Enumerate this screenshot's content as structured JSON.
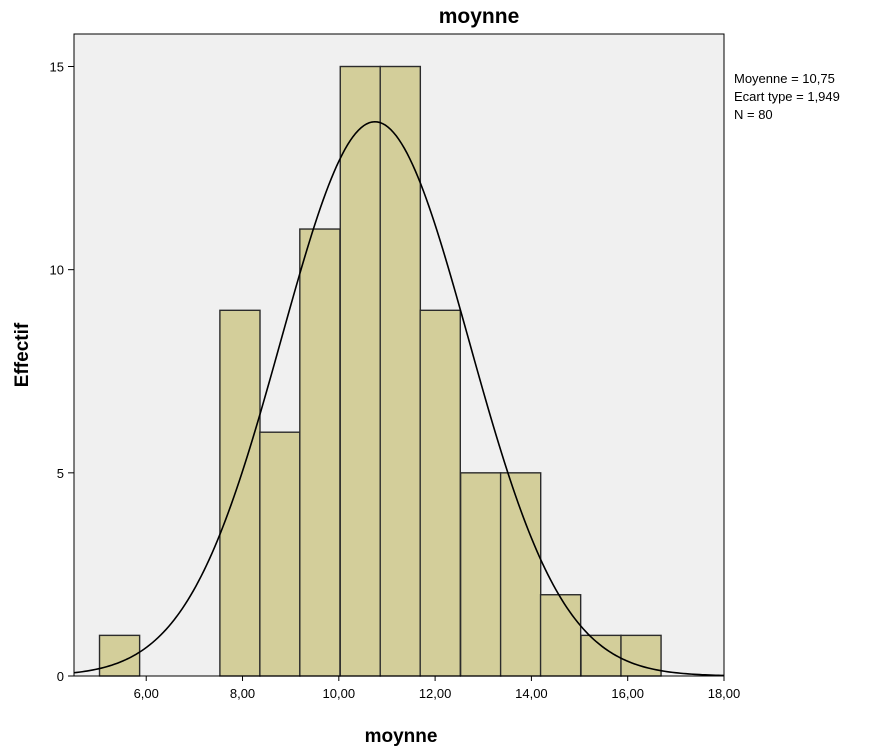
{
  "chart_data": {
    "type": "bar",
    "title": "moynne",
    "xlabel": "moynne",
    "ylabel": "Effectif",
    "xlim": [
      4.5,
      18.0
    ],
    "ylim": [
      0,
      15.8
    ],
    "x_ticks": [
      6,
      8,
      10,
      12,
      14,
      16,
      18
    ],
    "x_tick_labels": [
      "6,00",
      "8,00",
      "10,00",
      "12,00",
      "14,00",
      "16,00",
      "18,00"
    ],
    "y_ticks": [
      0,
      5,
      10,
      15
    ],
    "y_tick_labels": [
      "0",
      "5",
      "10",
      "15"
    ],
    "bin_width": 0.833,
    "bins": [
      {
        "start": 5.03,
        "count": 1
      },
      {
        "start": 7.53,
        "count": 9
      },
      {
        "start": 8.36,
        "count": 6
      },
      {
        "start": 9.19,
        "count": 11
      },
      {
        "start": 10.03,
        "count": 15
      },
      {
        "start": 10.86,
        "count": 15
      },
      {
        "start": 11.69,
        "count": 9
      },
      {
        "start": 12.53,
        "count": 5
      },
      {
        "start": 13.36,
        "count": 5
      },
      {
        "start": 14.19,
        "count": 2
      },
      {
        "start": 15.03,
        "count": 1
      },
      {
        "start": 15.86,
        "count": 1
      }
    ],
    "normal_curve": {
      "mean": 10.75,
      "std": 1.949,
      "n": 80
    },
    "stats": [
      "Moyenne = 10,75",
      "Ecart type = 1,949",
      "N = 80"
    ],
    "grid": false,
    "colors": {
      "plot_background": "#f0f0f0",
      "bar_fill": "#d3ce9a",
      "bar_stroke": "#2b2b2b",
      "curve": "#000000"
    }
  }
}
